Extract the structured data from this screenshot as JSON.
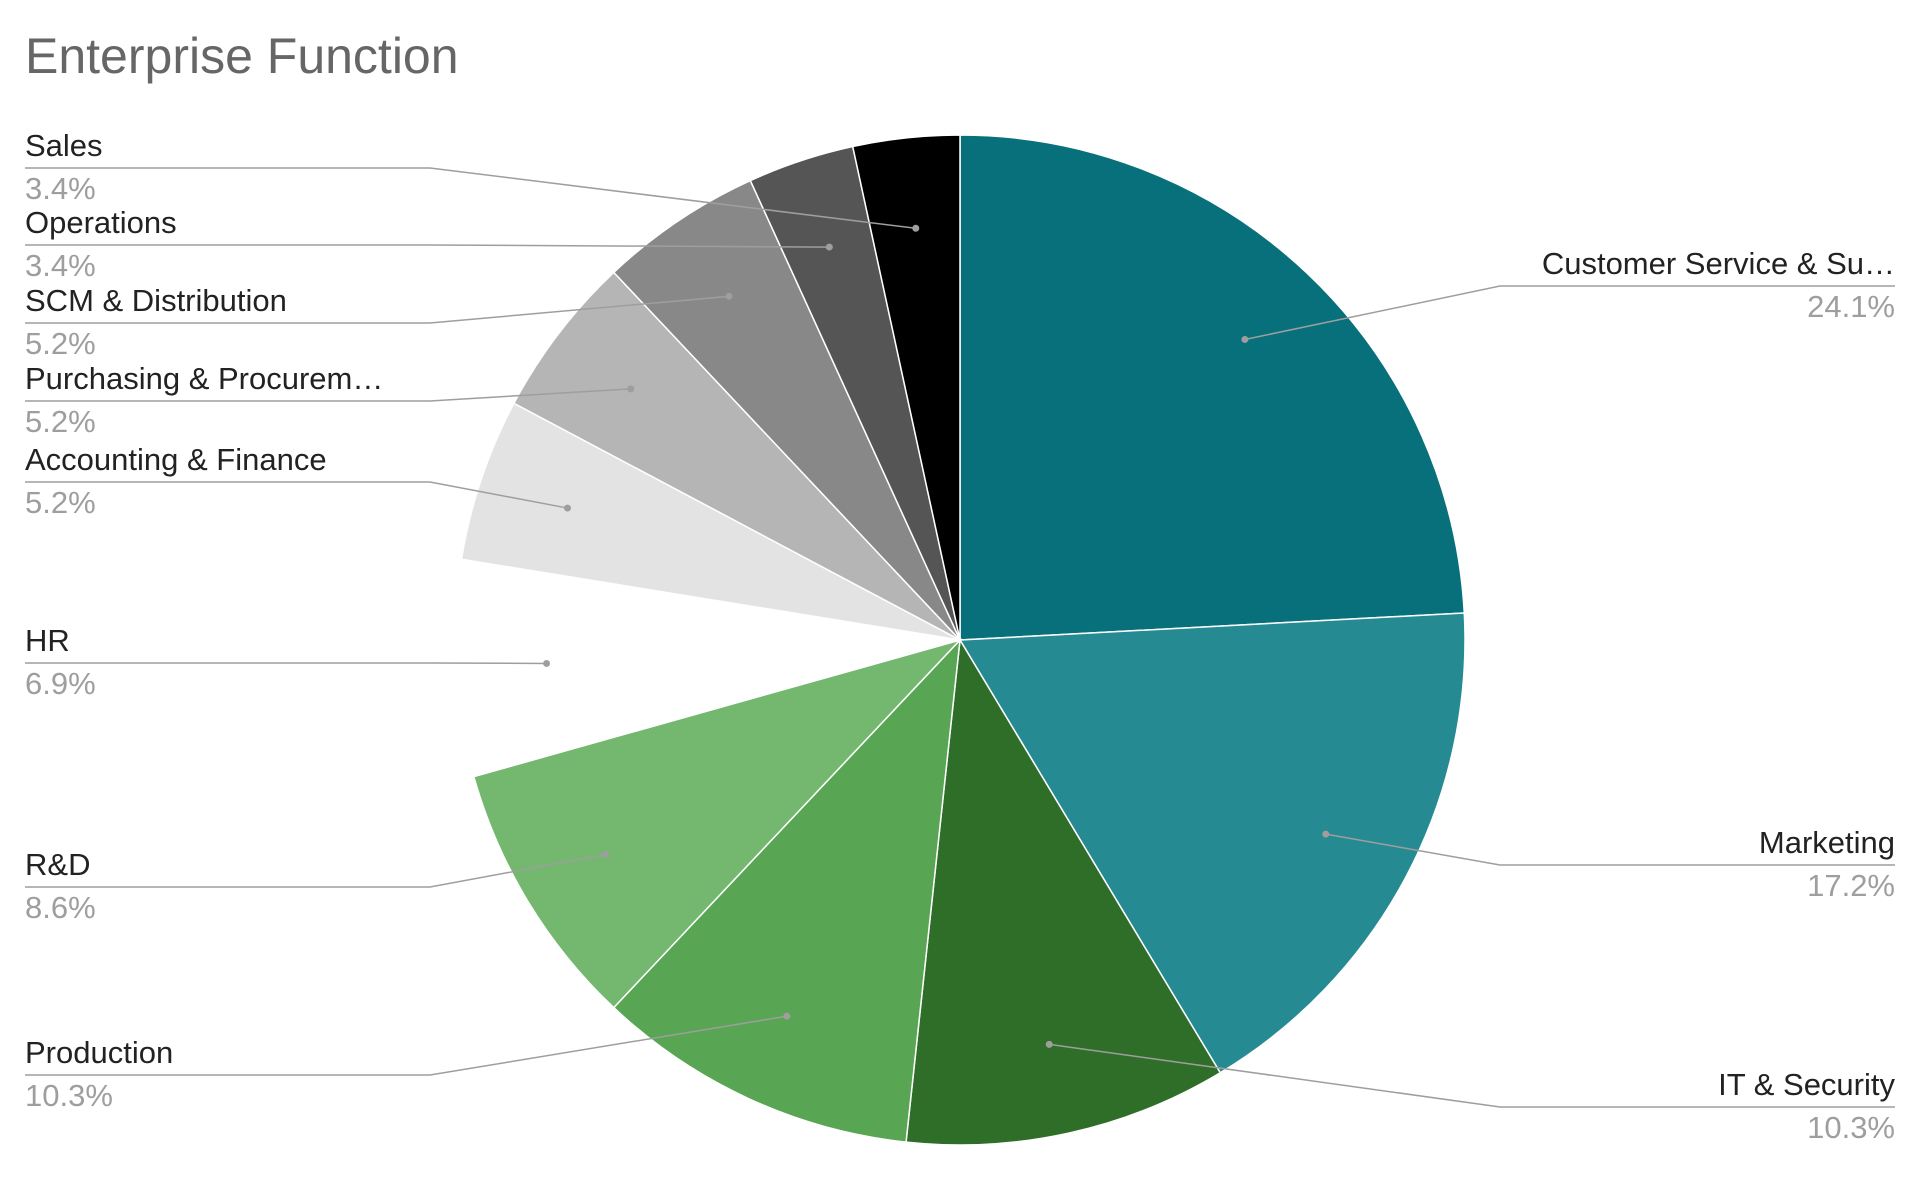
{
  "chart_data": {
    "type": "pie",
    "title": "Enterprise Function",
    "categories": [
      "Customer Service & Su…",
      "Marketing",
      "IT & Security",
      "Production",
      "R&D",
      "HR",
      "Accounting & Finance",
      "Purchasing & Procurem…",
      "SCM & Distribution",
      "Operations",
      "Sales"
    ],
    "values": [
      24.1,
      17.2,
      10.3,
      10.3,
      8.6,
      6.9,
      5.2,
      5.2,
      5.2,
      3.4,
      3.4
    ],
    "value_labels": [
      "24.1%",
      "17.2%",
      "10.3%",
      "10.3%",
      "8.6%",
      "6.9%",
      "5.2%",
      "5.2%",
      "5.2%",
      "3.4%",
      "3.4%"
    ],
    "colors": [
      "#08707a",
      "#268a93",
      "#2e6e28",
      "#58a553",
      "#74b86f",
      "#ffffff",
      "#e3e3e3",
      "#b5b5b5",
      "#888888",
      "#555555",
      "#000000"
    ]
  }
}
